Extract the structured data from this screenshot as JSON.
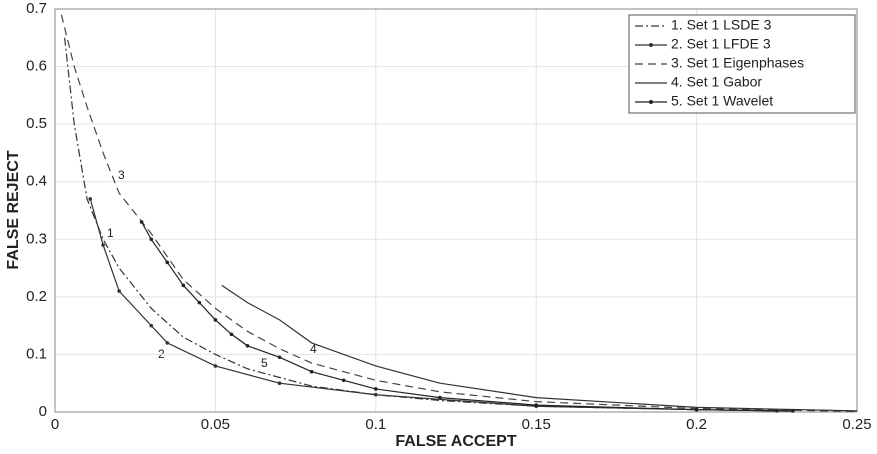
{
  "chart_data": {
    "type": "line",
    "xlabel": "FALSE ACCEPT",
    "ylabel": "FALSE REJECT",
    "xlim": [
      0,
      0.25
    ],
    "ylim": [
      0,
      0.7
    ],
    "xticks": [
      0,
      0.05,
      0.1,
      0.15,
      0.2,
      0.25
    ],
    "yticks": [
      0,
      0.1,
      0.2,
      0.3,
      0.4,
      0.5,
      0.6,
      0.7
    ],
    "grid": true,
    "legend": "upper right",
    "annotations": [
      "3",
      "1",
      "2",
      "5",
      "4"
    ],
    "series": [
      {
        "name": "1. Set 1 LSDE 3",
        "color": "#333333",
        "style": "dashdot",
        "marker": "none",
        "x": [
          0.003,
          0.006,
          0.01,
          0.015,
          0.02,
          0.03,
          0.04,
          0.05,
          0.06,
          0.08,
          0.1,
          0.12,
          0.15,
          0.2,
          0.23
        ],
        "values": [
          0.65,
          0.5,
          0.37,
          0.3,
          0.25,
          0.18,
          0.13,
          0.1,
          0.075,
          0.045,
          0.03,
          0.02,
          0.01,
          0.004,
          0.002
        ]
      },
      {
        "name": "2. Set 1 LFDE 3",
        "color": "#333333",
        "style": "solid",
        "marker": "dot",
        "x": [
          0.011,
          0.015,
          0.02,
          0.03,
          0.035,
          0.05,
          0.07,
          0.1,
          0.15,
          0.2,
          0.225
        ],
        "values": [
          0.37,
          0.29,
          0.21,
          0.15,
          0.12,
          0.08,
          0.05,
          0.03,
          0.01,
          0.004,
          0.002
        ]
      },
      {
        "name": "3. Set 1 Eigenphases",
        "color": "#444444",
        "style": "dashed",
        "marker": "none",
        "x": [
          0.002,
          0.006,
          0.01,
          0.015,
          0.02,
          0.03,
          0.04,
          0.05,
          0.06,
          0.07,
          0.08,
          0.1,
          0.12,
          0.15,
          0.2,
          0.25
        ],
        "values": [
          0.69,
          0.6,
          0.53,
          0.45,
          0.38,
          0.31,
          0.23,
          0.18,
          0.14,
          0.11,
          0.085,
          0.055,
          0.035,
          0.018,
          0.006,
          0.001
        ]
      },
      {
        "name": "4. Set 1 Gabor",
        "color": "#333333",
        "style": "solid",
        "marker": "none",
        "x": [
          0.052,
          0.06,
          0.07,
          0.08,
          0.09,
          0.1,
          0.12,
          0.15,
          0.2,
          0.25
        ],
        "values": [
          0.22,
          0.19,
          0.16,
          0.12,
          0.1,
          0.08,
          0.05,
          0.025,
          0.008,
          0.002
        ]
      },
      {
        "name": "5. Set 1 Wavelet",
        "color": "#222222",
        "style": "solid",
        "marker": "dot",
        "x": [
          0.027,
          0.03,
          0.035,
          0.04,
          0.045,
          0.05,
          0.055,
          0.06,
          0.07,
          0.08,
          0.09,
          0.1,
          0.12,
          0.15,
          0.2,
          0.23
        ],
        "values": [
          0.33,
          0.3,
          0.26,
          0.22,
          0.19,
          0.16,
          0.135,
          0.115,
          0.095,
          0.07,
          0.055,
          0.04,
          0.025,
          0.012,
          0.004,
          0.002
        ]
      }
    ]
  }
}
